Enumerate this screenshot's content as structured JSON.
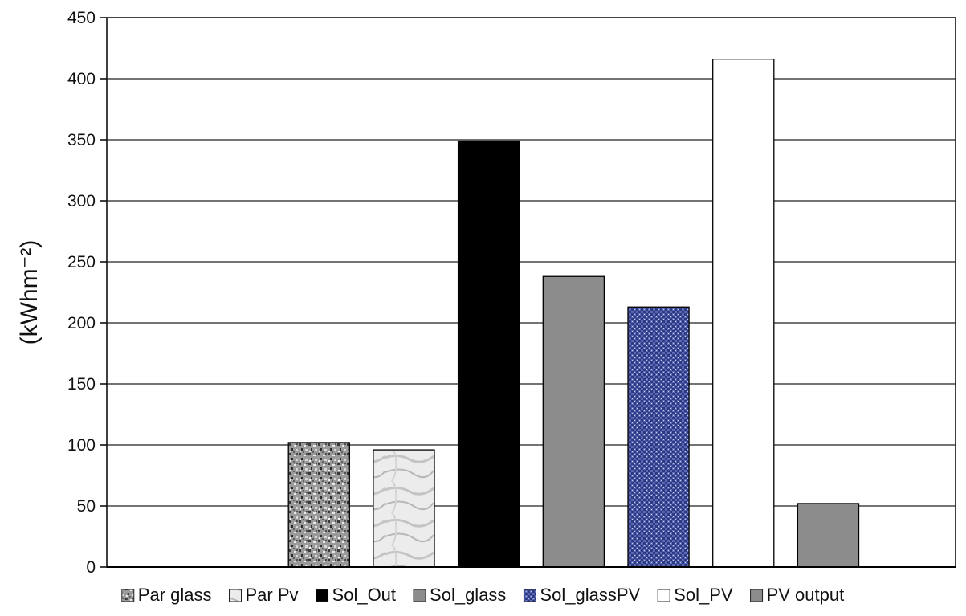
{
  "chart_data": {
    "type": "bar",
    "title": "",
    "xlabel": "",
    "ylabel": "(kWhm⁻²)",
    "ylim": [
      0,
      450
    ],
    "yticks": [
      0,
      50,
      100,
      150,
      200,
      250,
      300,
      350,
      400,
      450
    ],
    "grid": true,
    "legend_position": "bottom",
    "series": [
      {
        "name": "Par glass",
        "value": 102,
        "fill": "texture-granite",
        "color": "#8c8c8c"
      },
      {
        "name": "Par Pv",
        "value": 96,
        "fill": "texture-marble",
        "color": "#dcdcdc"
      },
      {
        "name": "Sol_Out",
        "value": 349,
        "fill": "solid",
        "color": "#000000"
      },
      {
        "name": "Sol_glass",
        "value": 238,
        "fill": "solid",
        "color": "#8c8c8c"
      },
      {
        "name": "Sol_glassPV",
        "value": 213,
        "fill": "texture-denim",
        "color": "#4a5aa8"
      },
      {
        "name": "Sol_PV",
        "value": 416,
        "fill": "solid",
        "color": "#ffffff"
      },
      {
        "name": "PV output",
        "value": 52,
        "fill": "solid",
        "color": "#8c8c8c"
      }
    ]
  }
}
